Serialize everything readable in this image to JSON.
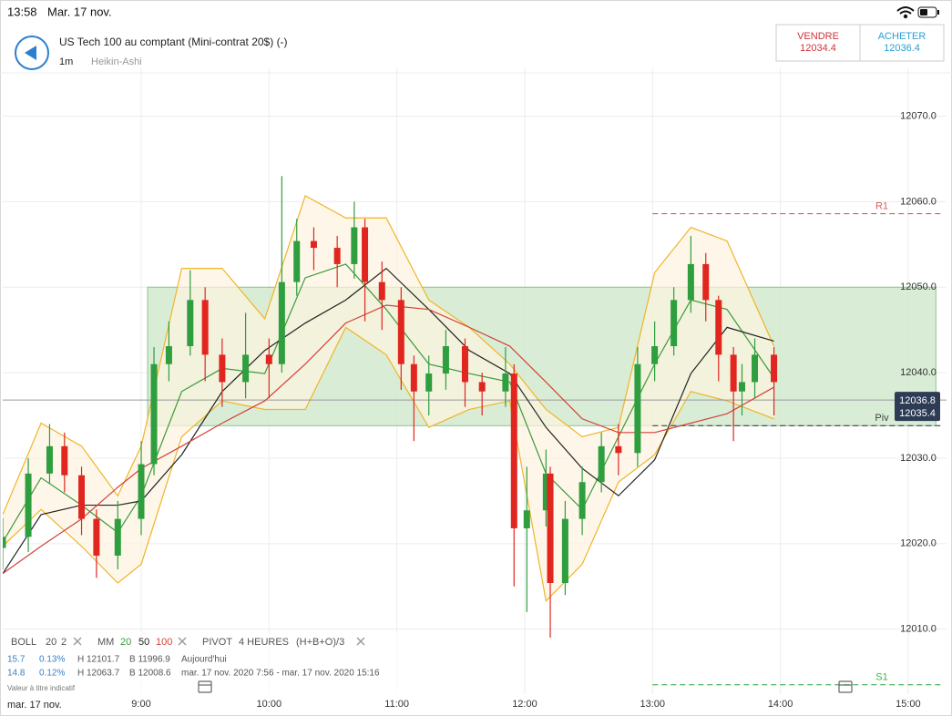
{
  "status_bar": {
    "time": "13:58",
    "date": "Mar. 17 nov."
  },
  "header": {
    "title": "US Tech 100 au comptant (Mini-contrat 20$) (-)",
    "interval": "1m",
    "chart_style": "Heikin-Ashi"
  },
  "quotes": {
    "sell": {
      "label": "VENDRE",
      "value": "12034.4"
    },
    "buy": {
      "label": "ACHETER",
      "value": "12036.4"
    }
  },
  "chart_data": {
    "type": "candlestick",
    "x": [
      475,
      487,
      497,
      504,
      512,
      519,
      529,
      540,
      546,
      553,
      563,
      570,
      578,
      589,
      600,
      606,
      613,
      621,
      632,
      640,
      645,
      653,
      662,
      668,
      675,
      683,
      692,
      700,
      711,
      715,
      721,
      730,
      732,
      739,
      747,
      756,
      764,
      773,
      781,
      790,
      798,
      805,
      811,
      818,
      822,
      828,
      837
    ],
    "open": [
      12019.5,
      12020.8,
      12028.2,
      12031.4,
      12028.0,
      12022.9,
      12018.6,
      12022.9,
      12029.3,
      12041.0,
      12043.1,
      12048.5,
      12042.1,
      12038.9,
      12042.1,
      12041.0,
      12050.6,
      12055.4,
      12054.6,
      12052.7,
      12057.0,
      12050.6,
      12048.5,
      12041.0,
      12037.8,
      12039.9,
      12043.1,
      12038.9,
      12037.8,
      12039.9,
      12021.8,
      12023.9,
      12028.2,
      12015.4,
      12022.9,
      12027.2,
      12031.4,
      12030.6,
      12041.0,
      12043.1,
      12048.5,
      12052.7,
      12048.5,
      12042.1,
      12037.8,
      12038.9,
      12042.1
    ],
    "high": [
      12023,
      12030,
      12034,
      12033,
      12029,
      12024,
      12025,
      12032,
      12043,
      12046,
      12052,
      12050,
      12044,
      12047,
      12044,
      12063,
      12058,
      12057,
      12056,
      12060,
      12058,
      12053,
      12050,
      12042,
      12042,
      12045,
      12044,
      12040,
      12043,
      12041,
      12029,
      12031,
      12029,
      12025,
      12029,
      12033,
      12034,
      12043,
      12046,
      12050,
      12056,
      12054,
      12049,
      12043,
      12041,
      12044,
      12043
    ],
    "low": [
      12017,
      12019,
      12027,
      12026,
      12021,
      12016,
      12017,
      12021,
      12028,
      12039,
      12042,
      12039,
      12036,
      12037,
      12037,
      12040,
      12049,
      12052,
      12050,
      12051,
      12046,
      12045,
      12038,
      12032,
      12035,
      12038,
      12036,
      12035,
      12036,
      12015,
      12012,
      12022,
      12009,
      12014,
      12021,
      12026,
      12028,
      12029,
      12039,
      12042,
      12047,
      12046,
      12039,
      12032,
      12035,
      12037,
      12035
    ],
    "close": [
      12020.8,
      12028.2,
      12031.4,
      12028.0,
      12022.9,
      12018.6,
      12022.9,
      12029.3,
      12041.0,
      12043.1,
      12048.5,
      12042.1,
      12038.9,
      12042.1,
      12041.0,
      12050.6,
      12055.4,
      12054.6,
      12052.7,
      12057.0,
      12050.6,
      12048.5,
      12041.0,
      12037.8,
      12039.9,
      12043.1,
      12038.9,
      12037.8,
      12039.9,
      12021.8,
      12023.9,
      12028.2,
      12015.4,
      12022.9,
      12027.2,
      12031.4,
      12030.6,
      12041.0,
      12043.1,
      12048.5,
      12052.7,
      12048.5,
      12042.1,
      12037.8,
      12038.9,
      12042.1,
      12038.9
    ],
    "up_color": "#2e9e3e",
    "down_color": "#e0261f",
    "xlim": [
      475,
      918
    ],
    "xticks": [
      {
        "value": 540,
        "label": "9:00"
      },
      {
        "value": 600,
        "label": "10:00"
      },
      {
        "value": 660,
        "label": "11:00"
      },
      {
        "value": 720,
        "label": "12:00"
      },
      {
        "value": 780,
        "label": "13:00"
      },
      {
        "value": 840,
        "label": "14:00"
      },
      {
        "value": 900,
        "label": "15:00"
      }
    ],
    "ylim": [
      12002.4,
      12075.6
    ],
    "yticks": [
      {
        "value": 12010,
        "label": "12010.0"
      },
      {
        "value": 12020,
        "label": "12020.0"
      },
      {
        "value": 12030,
        "label": "12030.0"
      },
      {
        "value": 12040,
        "label": "12040.0"
      },
      {
        "value": 12050,
        "label": "12050.0"
      },
      {
        "value": 12060,
        "label": "12060.0"
      },
      {
        "value": 12070,
        "label": "12070.0"
      }
    ],
    "grid": true,
    "date_label": "mar. 17 nov.",
    "indicator_x": [
      475,
      493,
      512,
      529,
      540,
      559,
      578,
      598,
      617,
      636,
      655,
      675,
      694,
      713,
      730,
      747,
      764,
      781,
      798,
      815,
      837
    ],
    "bollinger": {
      "name": "BOLL",
      "period": 20,
      "deviation": 2,
      "color": "#f0b429",
      "fill": "#fdf3df",
      "upper": [
        12023.4,
        12034.1,
        12031.4,
        12025.6,
        12031.4,
        12052.2,
        12052.2,
        12046.3,
        12060.7,
        12058.1,
        12058.1,
        12048.5,
        12045.3,
        12041.0,
        12035.7,
        12032.5,
        12033.6,
        12051.7,
        12057.0,
        12055.4,
        12043.1
      ],
      "lower": [
        12019.7,
        12024.0,
        12019.7,
        12015.4,
        12017.6,
        12032.5,
        12036.7,
        12035.7,
        12035.7,
        12045.3,
        12042.1,
        12033.6,
        12035.7,
        12036.7,
        12013.3,
        12017.6,
        12027.2,
        12030.4,
        12037.8,
        12036.7,
        12034.6
      ]
    },
    "moving_averages": {
      "name": "MM",
      "series": [
        {
          "name": 20,
          "color": "#3a9a3a",
          "values": [
            12020.2,
            12027.7,
            12024.5,
            12021.3,
            12025.6,
            12037.8,
            12040.5,
            12039.9,
            12051.1,
            12052.7,
            12047.4,
            12041.0,
            12039.9,
            12038.9,
            12028.2,
            12024.0,
            12032.5,
            12041.0,
            12048.5,
            12047.4,
            12039.4
          ]
        },
        {
          "name": 50,
          "color": "#222222",
          "values": [
            12016.5,
            12023.4,
            12024.5,
            12024.5,
            12025.0,
            12030.4,
            12037.8,
            12042.6,
            12045.8,
            12048.5,
            12052.2,
            12047.4,
            12042.6,
            12039.9,
            12033.6,
            12028.8,
            12025.6,
            12029.8,
            12039.9,
            12045.3,
            12043.7
          ]
        },
        {
          "name": 100,
          "color": "#d2413a",
          "values": [
            12016.5,
            12019.7,
            12022.9,
            12026.6,
            12028.8,
            12031.4,
            12034.1,
            12036.7,
            12041.0,
            12045.8,
            12047.9,
            12047.4,
            12045.3,
            12043.1,
            12038.9,
            12034.6,
            12033.0,
            12033.0,
            12034.1,
            12035.2,
            12038.3
          ]
        }
      ]
    },
    "pivot": {
      "name": "PIVOT",
      "period": "4 HEURES",
      "formula": "(H+B+O)/3",
      "start": 780,
      "levels": [
        {
          "name": "R1",
          "value": 12058.6,
          "color": "#e05a5a"
        },
        {
          "name": "Piv",
          "value": 12033.8,
          "color": "#444444"
        },
        {
          "name": "S1",
          "value": 12003.5,
          "color": "#3cb050"
        }
      ]
    },
    "zone": {
      "xlim": [
        543,
        913
      ],
      "ylim": [
        12033.8,
        12050
      ],
      "color": "#cfe8cc"
    },
    "last_prices": [
      12036.8,
      12035.4
    ]
  },
  "stats": {
    "rows": [
      [
        "15.7",
        "0.13%",
        "H 12101.7",
        "B 11996.9",
        "Aujourd'hui"
      ],
      [
        "14.8",
        "0.12%",
        "H 12063.7",
        "B 12008.6",
        "mar. 17 nov. 2020 7:56 - mar. 17 nov. 2020 15:16"
      ]
    ],
    "note": "Valeur à titre indicatif"
  }
}
